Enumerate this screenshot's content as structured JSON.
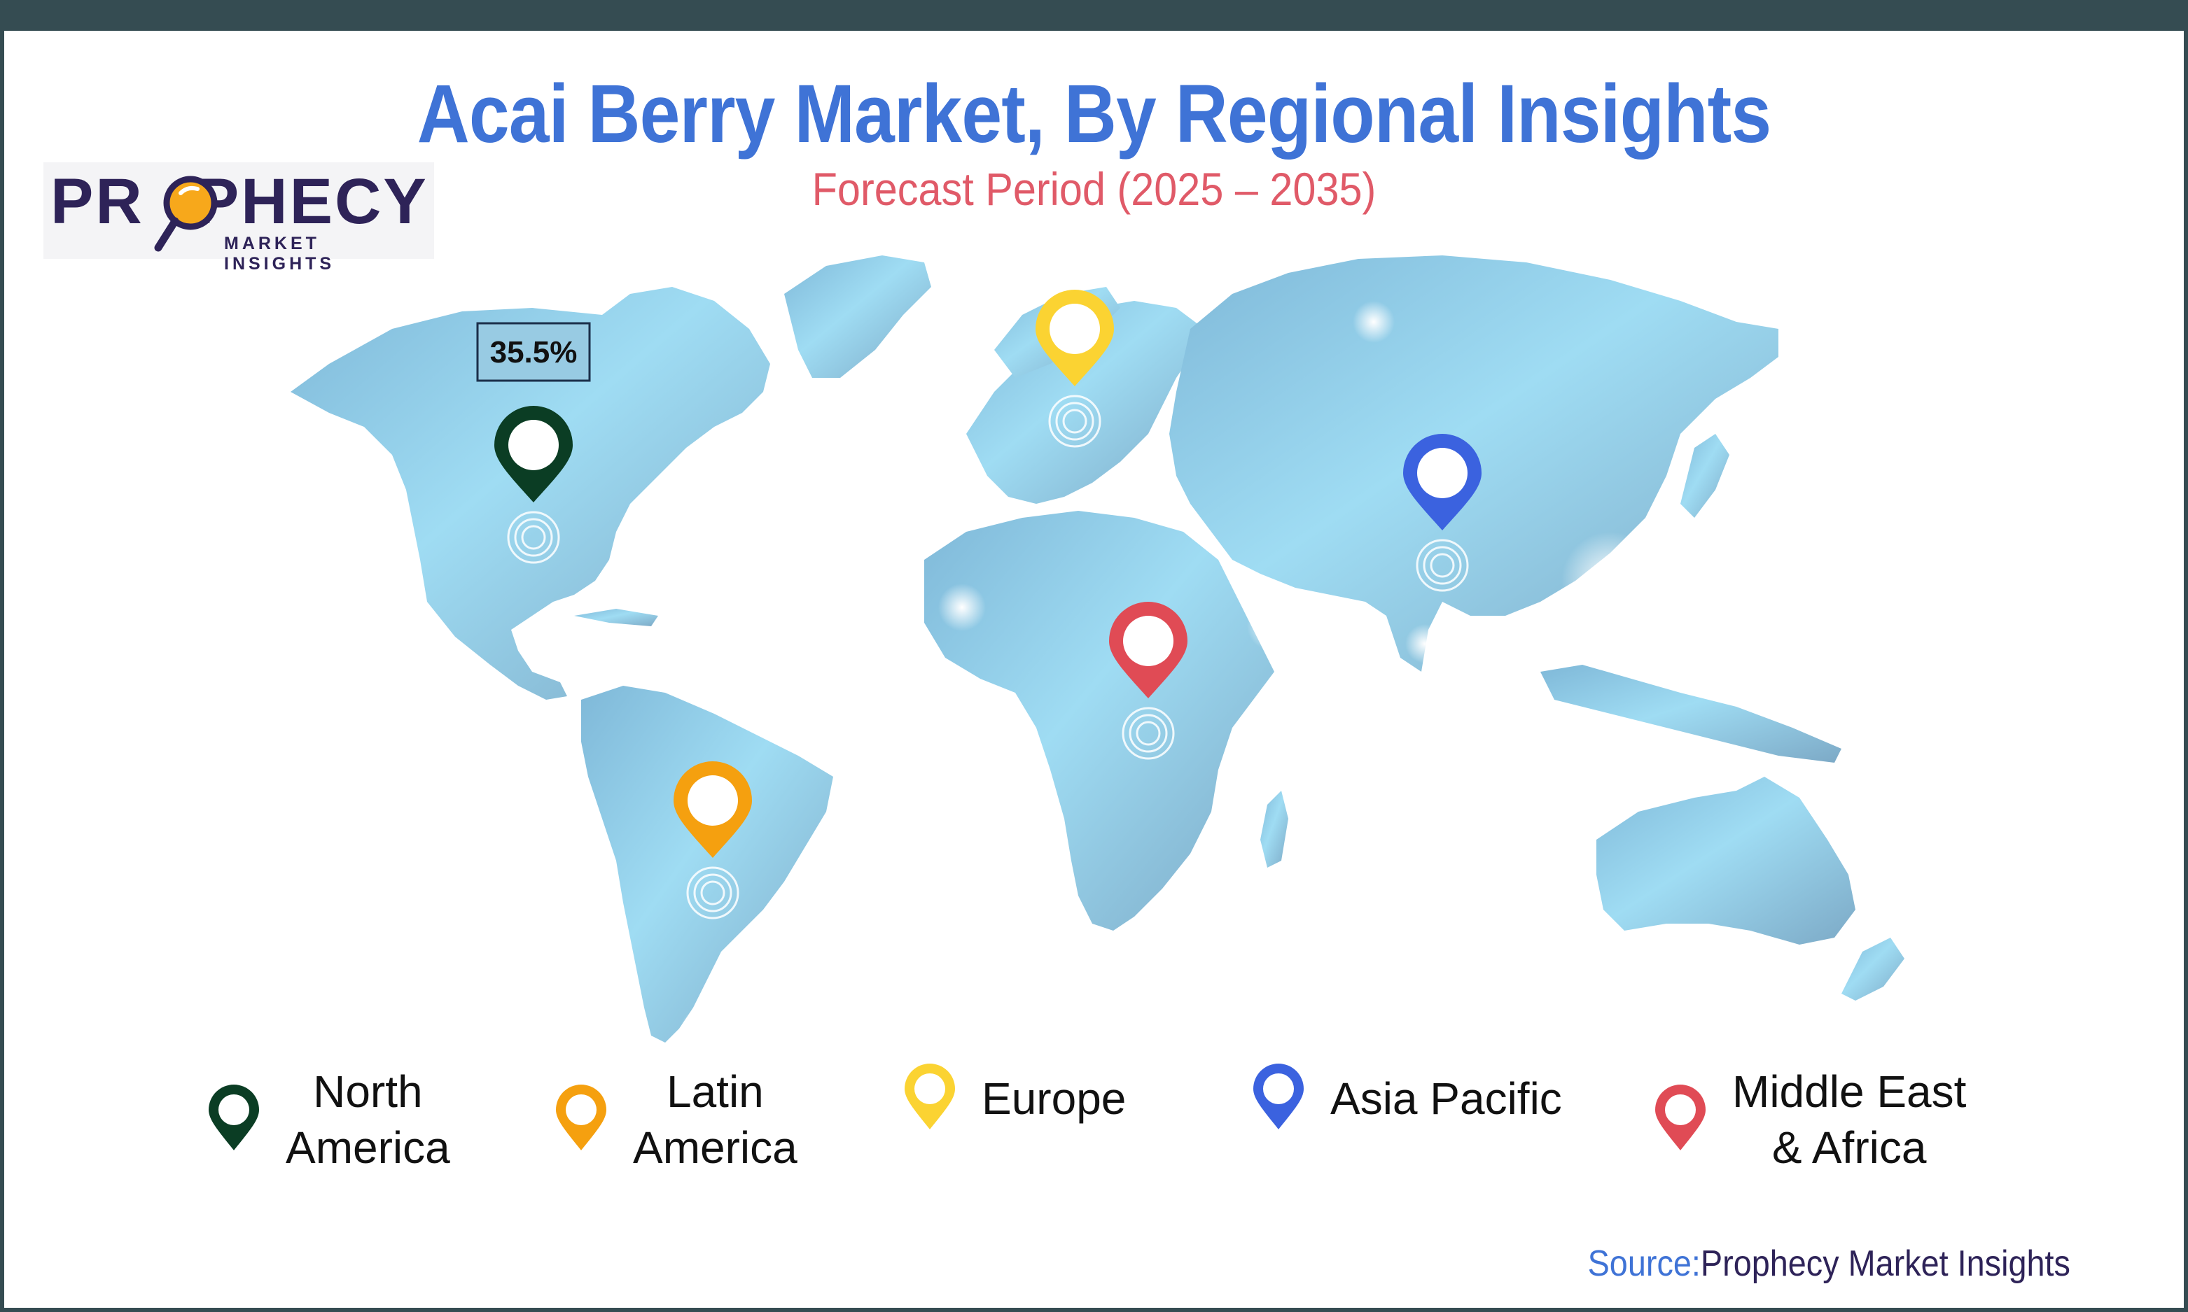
{
  "title": "Acai Berry Market, By Regional Insights",
  "subtitle": "Forecast Period (2025 – 2035)",
  "logo": {
    "word_left": "PR",
    "word_right": "PHECY",
    "tagline": "MARKET INSIGHTS"
  },
  "map_callout": {
    "region": "North America",
    "value": "35.5%"
  },
  "regions": [
    {
      "key": "north-america",
      "label": "North\nAmerica",
      "color": "#0b3d24"
    },
    {
      "key": "latin-america",
      "label": "Latin\nAmerica",
      "color": "#f5a00f"
    },
    {
      "key": "europe",
      "label": "Europe",
      "color": "#fbd332"
    },
    {
      "key": "asia-pacific",
      "label": "Asia Pacific",
      "color": "#3b62df"
    },
    {
      "key": "middle-east-africa",
      "label": "Middle East\n& Africa",
      "color": "#e04b55"
    }
  ],
  "source": {
    "label": "Source:",
    "name": "Prophecy Market Insights"
  }
}
